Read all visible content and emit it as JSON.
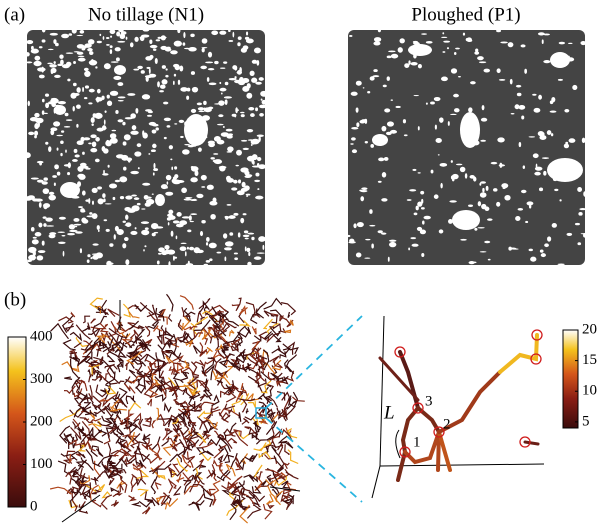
{
  "panel_a": {
    "label": "(a)",
    "images": [
      {
        "title": "No tillage (N1)"
      },
      {
        "title": "Ploughed (P1)"
      }
    ]
  },
  "panel_b": {
    "label": "(b)",
    "colorbars": [
      {
        "ylim": [
          0,
          400
        ],
        "yticks": [
          0,
          100,
          200,
          300,
          400
        ]
      },
      {
        "ylim": [
          4,
          20
        ],
        "yticks": [
          5,
          10,
          15,
          20
        ]
      }
    ],
    "node_labels": [
      "1",
      "2",
      "3"
    ],
    "length_label": "L"
  }
}
